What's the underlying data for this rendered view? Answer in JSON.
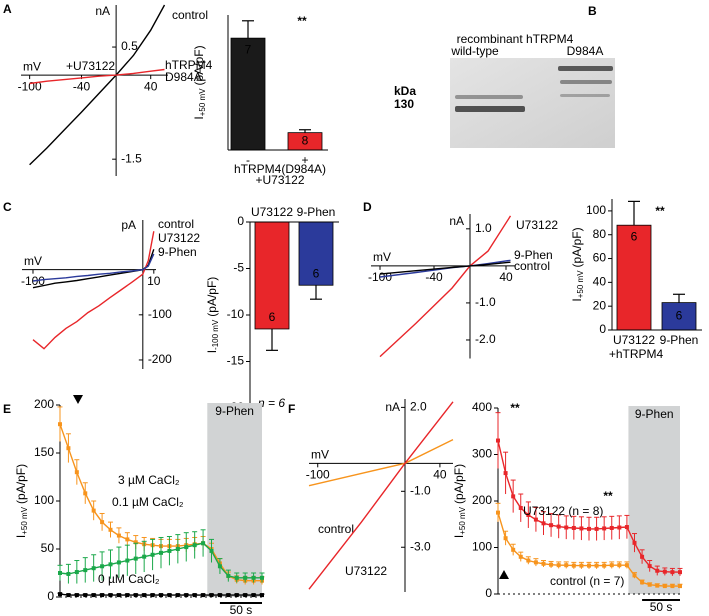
{
  "panels": [
    "A",
    "B",
    "C",
    "D",
    "E",
    "F"
  ],
  "chart_data": [
    {
      "type": "iv",
      "xlabel": "mV",
      "ylabel": "nA",
      "xlim": [
        -110,
        60
      ],
      "ylim": [
        -1.8,
        1.25
      ],
      "xticks": [
        -100,
        -40,
        40
      ],
      "yticks": [
        0.5,
        -1.5
      ],
      "x": [
        -100,
        -80,
        -60,
        -40,
        -20,
        0,
        20,
        40,
        56
      ],
      "series": [
        {
          "name": "control",
          "color": "#000000",
          "values": [
            -1.6,
            -1.3,
            -0.98,
            -0.66,
            -0.33,
            0,
            0.35,
            0.8,
            1.25
          ]
        },
        {
          "name": [
            "hTRPM4",
            "D984A"
          ],
          "color": "#e8262a",
          "values": [
            -0.15,
            -0.11,
            -0.08,
            -0.05,
            -0.02,
            0,
            0.03,
            0.07,
            0.1
          ]
        }
      ],
      "annotation": "+U73122"
    },
    {
      "type": "bar",
      "categories": [
        "-",
        "+"
      ],
      "values": [
        58,
        9
      ],
      "errors": [
        9,
        1.5
      ],
      "colors": [
        "#1a1a1a",
        "#e8262a"
      ],
      "n_labels": [
        "7",
        "8"
      ],
      "ylim": [
        0,
        70
      ],
      "xlabel": [
        "hTRPM4(D984A)",
        "+U73122"
      ],
      "ylabel": {
        "main": "I",
        "sub": "+50 mV",
        "unit": "(pA/pF)"
      },
      "significance": [
        "**"
      ]
    },
    {
      "type": "blot",
      "title": "recombinant hTRPM4",
      "lanes": [
        "wild-type",
        "D984A"
      ],
      "marker_unit": "kDa",
      "marker": 130
    },
    {
      "type": "iv",
      "xlabel": "mV",
      "ylabel": "pA",
      "xlim": [
        -110,
        12
      ],
      "ylim": [
        -220,
        110
      ],
      "xticks": [
        -100,
        10
      ],
      "yticks": [
        -100,
        -200
      ],
      "x": [
        -100,
        -90,
        -80,
        -70,
        -60,
        -50,
        -40,
        -30,
        -20,
        -10,
        0,
        5,
        10
      ],
      "series": [
        {
          "name": "control",
          "color": "#000000",
          "values": [
            -40,
            -35,
            -30,
            -27,
            -24,
            -20,
            -16,
            -12,
            -8,
            -4,
            0,
            10,
            45
          ]
        },
        {
          "name": "U73122",
          "color": "#e8262a",
          "values": [
            -155,
            -175,
            -150,
            -130,
            -115,
            -95,
            -80,
            -62,
            -45,
            -28,
            -10,
            20,
            85
          ]
        },
        {
          "name": "9-Phen",
          "color": "#2b3a9b",
          "values": [
            -25,
            -22,
            -20,
            -18,
            -15,
            -13,
            -10,
            -8,
            -5,
            -3,
            0,
            8,
            35
          ]
        }
      ]
    },
    {
      "type": "bar",
      "categories": [
        "U73122",
        "9-Phen"
      ],
      "values": [
        -11.5,
        -6.8
      ],
      "errors": [
        2.3,
        1.5
      ],
      "colors": [
        "#e8262a",
        "#2b3a9b"
      ],
      "n_labels": [
        "6",
        "6"
      ],
      "ylim": [
        -20,
        0
      ],
      "yticks": [
        0,
        -5,
        -10,
        -15,
        -20
      ],
      "ylabel": {
        "main": "I",
        "sub": "-100 mV",
        "unit": "(pA/pF)"
      },
      "annotation": "n = 6"
    },
    {
      "type": "iv",
      "xlabel": "mV",
      "ylabel": "nA",
      "xlim": [
        -110,
        50
      ],
      "ylim": [
        -2.5,
        1.4
      ],
      "xticks": [
        -100,
        -40,
        40
      ],
      "yticks": [
        {
          "value": 1,
          "label": "1.0"
        },
        {
          "value": -1,
          "label": "-1.0"
        },
        {
          "value": -2,
          "label": "-2.0"
        }
      ],
      "x": [
        -100,
        -60,
        -20,
        0,
        20,
        45
      ],
      "series": [
        {
          "name": "U73122",
          "color": "#e8262a",
          "values": [
            -2.45,
            -1.55,
            -0.6,
            0,
            0.4,
            1.35
          ]
        },
        {
          "name": "9-Phen",
          "color": "#2b3a9b",
          "values": [
            -0.3,
            -0.18,
            -0.05,
            0,
            0.06,
            0.15
          ]
        },
        {
          "name": "control",
          "color": "#000000",
          "values": [
            -0.22,
            -0.13,
            -0.04,
            0,
            0.04,
            0.1
          ]
        }
      ]
    },
    {
      "type": "bar",
      "categories": [
        "U73122",
        "9-Phen"
      ],
      "values": [
        88,
        23
      ],
      "errors": [
        20,
        7
      ],
      "colors": [
        "#e8262a",
        "#2b3a9b"
      ],
      "n_labels": [
        "6",
        "6"
      ],
      "ylim": [
        0,
        110
      ],
      "yticks": [
        0,
        20,
        40,
        60,
        80,
        100
      ],
      "xlabel": [
        "+hTRPM4"
      ],
      "ylabel": {
        "main": "I",
        "sub": "+50 mV",
        "unit": "(pA/pF)"
      },
      "significance": [
        "**"
      ]
    },
    {
      "type": "time",
      "x": [
        0,
        10,
        20,
        30,
        40,
        50,
        60,
        70,
        80,
        90,
        100,
        110,
        120,
        130,
        140,
        150,
        160,
        170,
        180,
        190,
        200,
        210,
        220,
        230,
        240
      ],
      "xlim": [
        0,
        240
      ],
      "ylim": [
        0,
        200
      ],
      "yticks": [
        0,
        50,
        100,
        150,
        200
      ],
      "ylabel": {
        "main": "I",
        "sub": "+50 mV",
        "unit": "(pA/pF)"
      },
      "shade": {
        "from": 175,
        "to": 240,
        "label": "9-Phen"
      },
      "scalebar": {
        "length": 50,
        "label": "50 s"
      },
      "series": [
        {
          "name": "3 µM CaCl₂",
          "color": "#f7941d",
          "values": [
            180,
            155,
            130,
            108,
            90,
            78,
            70,
            64,
            60,
            57,
            55,
            54,
            53,
            53,
            53,
            54,
            55,
            56,
            50,
            35,
            22,
            18,
            17,
            17,
            17
          ],
          "errors": [
            18,
            15,
            13,
            11,
            10,
            9,
            8,
            8,
            7,
            7,
            7,
            7,
            7,
            7,
            7,
            7,
            7,
            7,
            6,
            5,
            4,
            4,
            4,
            4,
            4
          ]
        },
        {
          "name": "0.1 µM CaCl₂",
          "color": "#1aa84a",
          "values": [
            25,
            24,
            26,
            28,
            30,
            32,
            34,
            36,
            38,
            40,
            42,
            44,
            46,
            48,
            50,
            52,
            54,
            56,
            48,
            32,
            22,
            20,
            20,
            20,
            20
          ],
          "errors": [
            8,
            10,
            12,
            13,
            14,
            15,
            15,
            16,
            16,
            16,
            16,
            16,
            16,
            15,
            15,
            15,
            14,
            14,
            12,
            8,
            6,
            5,
            5,
            5,
            5
          ]
        },
        {
          "name": "0 µM CaCl₂",
          "color": "#000000",
          "values": [
            3,
            2,
            2,
            2,
            2,
            2,
            2,
            2,
            2,
            2,
            2,
            2,
            2,
            2,
            2,
            2,
            2,
            2,
            2,
            2,
            2,
            2,
            2,
            2,
            2
          ],
          "errors": [
            1,
            1,
            1,
            1,
            1,
            1,
            1,
            1,
            1,
            1,
            1,
            1,
            1,
            1,
            1,
            1,
            1,
            1,
            1,
            1,
            1,
            1,
            1,
            1,
            1
          ]
        }
      ]
    },
    {
      "type": "iv",
      "xlabel": "mV",
      "ylabel": "nA",
      "xlim": [
        -110,
        55
      ],
      "ylim": [
        -4.6,
        2.3
      ],
      "xticks": [
        -100,
        40
      ],
      "yticks": [
        {
          "value": 2,
          "label": "2.0"
        },
        {
          "value": -1,
          "label": "-1.0"
        },
        {
          "value": -3,
          "label": "-3.0"
        }
      ],
      "x": [
        -110,
        -50,
        0,
        55
      ],
      "series": [
        {
          "name": "control",
          "color": "#f7941d",
          "values": [
            -0.8,
            -0.36,
            0,
            0.85
          ]
        },
        {
          "name": "U73122",
          "color": "#e8262a",
          "values": [
            -4.5,
            -2.1,
            0,
            2.2
          ]
        }
      ]
    },
    {
      "type": "time",
      "x": [
        0,
        10,
        20,
        30,
        40,
        50,
        60,
        70,
        80,
        90,
        100,
        110,
        120,
        130,
        140,
        150,
        160,
        170,
        180,
        190,
        200,
        210,
        220,
        230,
        240
      ],
      "xlim": [
        0,
        240
      ],
      "ylim": [
        0,
        400
      ],
      "yticks": [
        0,
        100,
        200,
        300,
        400
      ],
      "ylabel": {
        "main": "I",
        "sub": "+50 mV",
        "unit": "(pA/pF)"
      },
      "shade": {
        "from": 172,
        "to": 240,
        "label": "9-Phen"
      },
      "scalebar": {
        "length": 50,
        "label": "50 s"
      },
      "series": [
        {
          "name": "U73122 (n = 8)",
          "color": "#e8262a",
          "values": [
            330,
            260,
            210,
            185,
            170,
            160,
            152,
            148,
            145,
            143,
            142,
            141,
            140,
            140,
            141,
            142,
            143,
            144,
            110,
            80,
            60,
            50,
            48,
            47,
            47
          ],
          "errors": [
            60,
            45,
            35,
            30,
            28,
            26,
            25,
            25,
            25,
            25,
            25,
            25,
            25,
            25,
            25,
            25,
            25,
            25,
            20,
            15,
            12,
            10,
            8,
            8,
            8
          ]
        },
        {
          "name": "control (n = 7)",
          "color": "#f7941d",
          "values": [
            175,
            120,
            95,
            80,
            72,
            68,
            65,
            63,
            62,
            62,
            61,
            61,
            61,
            61,
            61,
            62,
            62,
            62,
            40,
            25,
            20,
            18,
            17,
            17,
            17
          ],
          "errors": [
            20,
            15,
            12,
            10,
            8,
            8,
            7,
            7,
            7,
            7,
            7,
            7,
            7,
            7,
            7,
            7,
            7,
            7,
            6,
            5,
            4,
            4,
            4,
            4,
            4
          ]
        }
      ],
      "significance": [
        "**",
        "**"
      ]
    }
  ]
}
